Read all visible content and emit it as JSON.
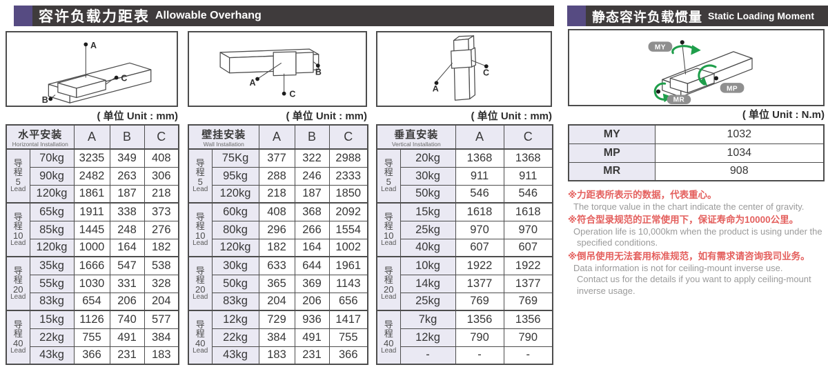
{
  "sections": {
    "left": {
      "zh": "容许负载力距表",
      "en": "Allowable Overhang"
    },
    "right": {
      "zh": "静态容许负载惯量",
      "en": "Static Loading Moment"
    }
  },
  "lead_label": {
    "zh": "导程",
    "en": "Lead"
  },
  "load_tables": [
    {
      "title_zh": "水平安装",
      "title_en": "Horizontal Installation",
      "unit": "( 单位 Unit : mm)",
      "columns": [
        "A",
        "B",
        "C"
      ],
      "groups": [
        {
          "lead": "5",
          "rows": [
            [
              "70kg",
              "3235",
              "349",
              "408"
            ],
            [
              "90kg",
              "2482",
              "263",
              "306"
            ],
            [
              "120kg",
              "1861",
              "187",
              "218"
            ]
          ]
        },
        {
          "lead": "10",
          "rows": [
            [
              "65kg",
              "1911",
              "338",
              "373"
            ],
            [
              "85kg",
              "1445",
              "248",
              "276"
            ],
            [
              "120kg",
              "1000",
              "164",
              "182"
            ]
          ]
        },
        {
          "lead": "20",
          "rows": [
            [
              "35kg",
              "1666",
              "547",
              "538"
            ],
            [
              "55kg",
              "1030",
              "331",
              "328"
            ],
            [
              "83kg",
              "654",
              "206",
              "204"
            ]
          ]
        },
        {
          "lead": "40",
          "rows": [
            [
              "15kg",
              "1126",
              "740",
              "577"
            ],
            [
              "22kg",
              "755",
              "491",
              "384"
            ],
            [
              "43kg",
              "366",
              "231",
              "183"
            ]
          ]
        }
      ]
    },
    {
      "title_zh": "壁挂安装",
      "title_en": "Wall Installation",
      "unit": "( 单位 Unit : mm)",
      "columns": [
        "A",
        "B",
        "C"
      ],
      "groups": [
        {
          "lead": "5",
          "rows": [
            [
              "75Kg",
              "377",
              "322",
              "2988"
            ],
            [
              "95kg",
              "288",
              "246",
              "2333"
            ],
            [
              "120kg",
              "218",
              "187",
              "1850"
            ]
          ]
        },
        {
          "lead": "10",
          "rows": [
            [
              "60kg",
              "408",
              "368",
              "2092"
            ],
            [
              "80kg",
              "296",
              "266",
              "1554"
            ],
            [
              "120kg",
              "182",
              "164",
              "1002"
            ]
          ]
        },
        {
          "lead": "20",
          "rows": [
            [
              "30kg",
              "633",
              "644",
              "1961"
            ],
            [
              "50kg",
              "365",
              "369",
              "1143"
            ],
            [
              "83kg",
              "204",
              "206",
              "656"
            ]
          ]
        },
        {
          "lead": "40",
          "rows": [
            [
              "12kg",
              "729",
              "936",
              "1417"
            ],
            [
              "22kg",
              "384",
              "491",
              "755"
            ],
            [
              "43kg",
              "183",
              "231",
              "366"
            ]
          ]
        }
      ]
    },
    {
      "title_zh": "垂直安装",
      "title_en": "Vertical Installation",
      "unit": "( 单位 Unit : mm)",
      "columns": [
        "A",
        "C"
      ],
      "groups": [
        {
          "lead": "5",
          "rows": [
            [
              "20kg",
              "1368",
              "1368"
            ],
            [
              "30kg",
              "911",
              "911"
            ],
            [
              "50kg",
              "546",
              "546"
            ]
          ]
        },
        {
          "lead": "10",
          "rows": [
            [
              "15kg",
              "1618",
              "1618"
            ],
            [
              "25kg",
              "970",
              "970"
            ],
            [
              "40kg",
              "607",
              "607"
            ]
          ]
        },
        {
          "lead": "20",
          "rows": [
            [
              "10kg",
              "1922",
              "1922"
            ],
            [
              "14kg",
              "1377",
              "1377"
            ],
            [
              "25kg",
              "769",
              "769"
            ]
          ]
        },
        {
          "lead": "40",
          "rows": [
            [
              "7kg",
              "1356",
              "1356"
            ],
            [
              "12kg",
              "790",
              "790"
            ],
            [
              "-",
              "-",
              "-"
            ]
          ]
        }
      ]
    }
  ],
  "moment_table": {
    "unit": "( 单位 Unit : N.m)",
    "rows": [
      {
        "label": "MY",
        "value": "1032"
      },
      {
        "label": "MP",
        "value": "1034"
      },
      {
        "label": "MR",
        "value": "908"
      }
    ]
  },
  "diagram_labels": {
    "a": "A",
    "b": "B",
    "c": "C",
    "my": "MY",
    "mp": "MP",
    "mr": "MR"
  },
  "notes": [
    {
      "zh": "※力距表所表示的数据，代表重心。",
      "en": [
        "The torque value in the chart indicate the center of gravity."
      ]
    },
    {
      "zh": "※符合型录规范的正常使用下，保证寿命为10000公里。",
      "en": [
        "Operation life is 10,000km when the product is using under the",
        "specified conditions."
      ]
    },
    {
      "zh": "※倒吊使用无法套用标准规范，如有需求请咨询我司业务。",
      "en": [
        "Data information is not for ceiling-mount inverse use.",
        "Contact us for the details if you want to apply ceiling-mount",
        "inverse usage."
      ]
    }
  ],
  "colors": {
    "accent_purple": "#564b82",
    "header_dark": "#3f3b3c",
    "cell_lavender": "#eae9f3",
    "note_red": "#e4605e",
    "note_gray": "#9a9a9a",
    "diagram_green": "#1f9e4b"
  }
}
